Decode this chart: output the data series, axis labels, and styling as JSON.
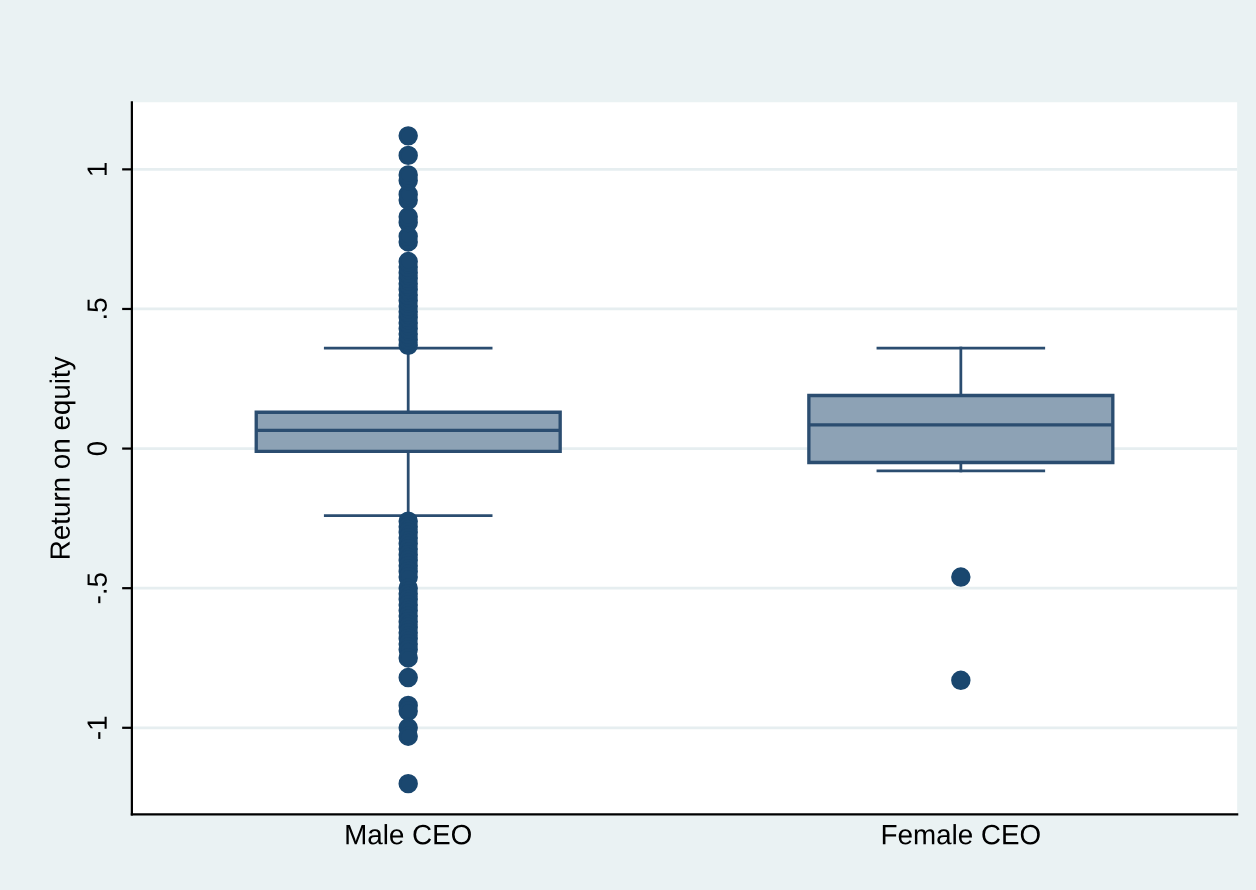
{
  "chart_data": {
    "type": "box",
    "ylabel": "Return on equity",
    "categories": [
      "Male CEO",
      "Female CEO"
    ],
    "boxes": [
      {
        "low": -0.24,
        "q1": -0.01,
        "median": 0.065,
        "q3": 0.13,
        "high": 0.36,
        "outliers": [
          0.37,
          0.39,
          0.41,
          0.43,
          0.45,
          0.47,
          0.49,
          0.51,
          0.53,
          0.55,
          0.57,
          0.59,
          0.61,
          0.63,
          0.65,
          0.67,
          0.74,
          0.76,
          0.81,
          0.83,
          0.89,
          0.91,
          0.96,
          0.98,
          1.05,
          1.12,
          -0.26,
          -0.28,
          -0.3,
          -0.32,
          -0.34,
          -0.36,
          -0.38,
          -0.4,
          -0.42,
          -0.44,
          -0.46,
          -0.5,
          -0.52,
          -0.54,
          -0.56,
          -0.58,
          -0.6,
          -0.62,
          -0.64,
          -0.66,
          -0.68,
          -0.7,
          -0.72,
          -0.75,
          -0.82,
          -0.92,
          -0.94,
          -1.0,
          -1.03,
          -1.2
        ]
      },
      {
        "low": -0.08,
        "q1": -0.05,
        "median": 0.085,
        "q3": 0.19,
        "high": 0.36,
        "outliers": [
          -0.46,
          -0.83
        ]
      }
    ],
    "color": "#8da2b5",
    "ylim": [
      -1.31,
      1.24
    ],
    "yticks": [
      {
        "value": -1,
        "label": "-1"
      },
      {
        "value": -0.5,
        "label": "-.5"
      },
      0,
      {
        "value": 0.5,
        "label": ".5"
      },
      1
    ],
    "grid": "y"
  }
}
